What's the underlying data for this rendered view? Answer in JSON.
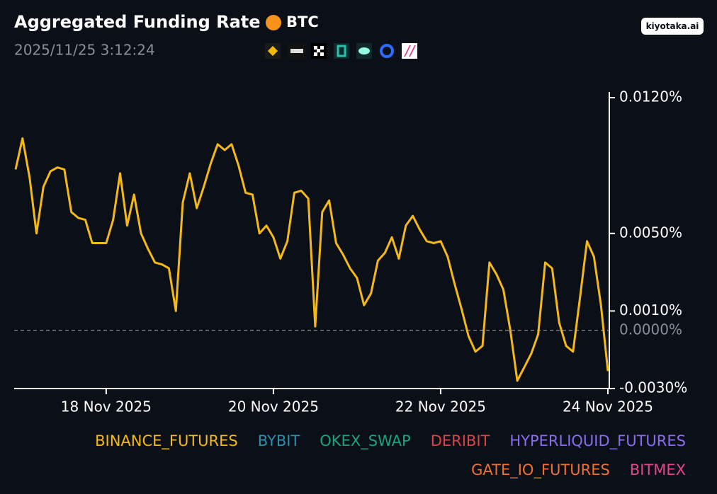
{
  "header": {
    "title": "Aggregated Funding Rate",
    "asset": "BTC",
    "timestamp": "2025/11/25 3:12:24",
    "brand": "kiyotaka.ai"
  },
  "chart_data": {
    "type": "line",
    "categories": [
      null,
      null,
      null,
      null,
      null,
      null,
      null,
      null,
      null,
      null,
      null,
      null,
      null,
      "18 Nov 2025",
      null,
      null,
      null,
      null,
      null,
      null,
      null,
      null,
      null,
      null,
      null,
      null,
      null,
      null,
      null,
      null,
      null,
      null,
      null,
      null,
      null,
      null,
      null,
      "20 Nov 2025",
      null,
      null,
      null,
      null,
      null,
      null,
      null,
      null,
      null,
      null,
      null,
      null,
      null,
      null,
      null,
      null,
      null,
      null,
      null,
      null,
      null,
      null,
      null,
      "22 Nov 2025",
      null,
      null,
      null,
      null,
      null,
      null,
      null,
      null,
      null,
      null,
      null,
      null,
      null,
      null,
      null,
      null,
      null,
      null,
      null,
      null,
      null,
      null,
      null,
      "24 Nov 2025"
    ],
    "series": [
      {
        "name": "BINANCE_FUTURES",
        "color": "#f5b916",
        "values": [
          0.0083,
          0.0099,
          0.0079,
          0.005,
          0.0074,
          0.0082,
          0.0084,
          0.0083,
          0.0061,
          0.0058,
          0.0057,
          0.0045,
          0.0045,
          0.0045,
          0.0057,
          0.0081,
          0.0054,
          0.007,
          0.005,
          0.0042,
          0.0035,
          0.0034,
          0.0032,
          0.001,
          0.0066,
          0.0081,
          0.0063,
          0.0074,
          0.0086,
          0.0096,
          0.0093,
          0.0096,
          0.0085,
          0.0071,
          0.007,
          0.005,
          0.0054,
          0.0048,
          0.0037,
          0.0046,
          0.0071,
          0.0072,
          0.0068,
          0.0002,
          0.0061,
          0.0067,
          0.0045,
          0.0039,
          0.0032,
          0.0027,
          0.0013,
          0.0019,
          0.0036,
          0.004,
          0.0048,
          0.0037,
          0.0054,
          0.0059,
          0.0052,
          0.0046,
          0.0045,
          0.0046,
          0.0038,
          0.0024,
          0.0011,
          -0.0003,
          -0.0011,
          -0.0008,
          0.0035,
          0.0029,
          0.0021,
          0.0,
          -0.0026,
          -0.0019,
          -0.0012,
          -0.0002,
          0.0035,
          0.0032,
          0.0004,
          -0.0008,
          -0.0011,
          0.0017,
          0.0046,
          0.0038,
          0.0013,
          -0.0021
        ]
      },
      {
        "name": "BYBIT",
        "color": "#2f8fa8"
      },
      {
        "name": "OKEX_SWAP",
        "color": "#1aa37a"
      },
      {
        "name": "DERIBIT",
        "color": "#d9444a"
      },
      {
        "name": "HYPERLIQUID_FUTURES",
        "color": "#8a6cf0"
      },
      {
        "name": "GATE_IO_FUTURES",
        "color": "#f07030"
      },
      {
        "name": "BITMEX",
        "color": "#e0468a"
      }
    ],
    "ylim": [
      -0.003,
      0.012
    ],
    "yticks": [
      {
        "value": 0.012,
        "label": "0.0120%"
      },
      {
        "value": 0.005,
        "label": "0.0050%"
      },
      {
        "value": 0.001,
        "label": "0.0010%"
      },
      {
        "value": 0,
        "label": "0.0000%"
      },
      {
        "value": -0.003,
        "label": "-0.0030%"
      }
    ]
  }
}
